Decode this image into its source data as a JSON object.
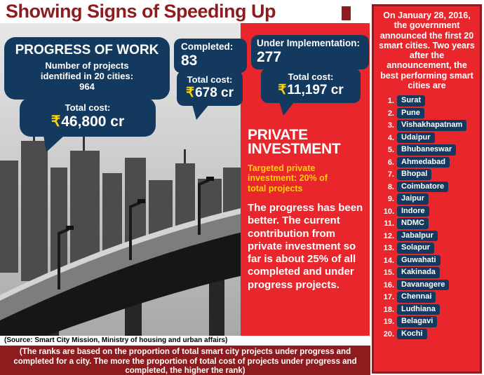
{
  "title": "Showing Signs of Speeding Up",
  "colors": {
    "maroon": "#8e1b1e",
    "red": "#e8262b",
    "navy": "#14395e",
    "yellow": "#fcd20a"
  },
  "bubbles": {
    "progress": {
      "heading": "PROGRESS OF WORK",
      "sub": "Number of projects identified in 20 cities: 964",
      "cost_label": "Total cost:",
      "rupee": "₹",
      "cost_value": "46,800 cr"
    },
    "completed": {
      "label": "Completed:",
      "value": "83",
      "cost_label": "Total cost:",
      "rupee": "₹",
      "cost_value": "678 cr"
    },
    "under_implementation": {
      "label": "Under Implementation:",
      "value": "277",
      "cost_label": "Total cost:",
      "rupee": "₹",
      "cost_value": "11,197 cr"
    }
  },
  "private_investment": {
    "heading_line1": "PRIVATE",
    "heading_line2": "INVESTMENT",
    "target": "Targeted private investment: 20% of total projects",
    "body": "The progress has been better. The current contribution from private investment so far is about 25% of all completed and under progress projects."
  },
  "source": "(Source: Smart City Mission, Ministry of housing and urban affairs)",
  "footnote": "(The ranks are based on the proportion of total smart city projects under progress and completed for a city. The more the proportion of total cost of projects under progress and completed, the higher the rank)",
  "sidebar": {
    "intro": "On January 28, 2016, the government announced the first 20 smart cities. Two years after the announcement, the best performing smart cities are",
    "cities": [
      {
        "rank": "1.",
        "name": "Surat"
      },
      {
        "rank": "2.",
        "name": "Pune"
      },
      {
        "rank": "3.",
        "name": "Vishakhapatnam"
      },
      {
        "rank": "4.",
        "name": "Udaipur"
      },
      {
        "rank": "5.",
        "name": "Bhubaneswar"
      },
      {
        "rank": "6.",
        "name": "Ahmedabad"
      },
      {
        "rank": "7.",
        "name": "Bhopal"
      },
      {
        "rank": "8.",
        "name": "Coimbatore"
      },
      {
        "rank": "9.",
        "name": "Jaipur"
      },
      {
        "rank": "10.",
        "name": "Indore"
      },
      {
        "rank": "11.",
        "name": "NDMC"
      },
      {
        "rank": "12.",
        "name": "Jabalpur"
      },
      {
        "rank": "13.",
        "name": "Solapur"
      },
      {
        "rank": "14.",
        "name": "Guwahati"
      },
      {
        "rank": "15.",
        "name": "Kakinada"
      },
      {
        "rank": "16.",
        "name": "Davanagere"
      },
      {
        "rank": "17.",
        "name": "Chennai"
      },
      {
        "rank": "18.",
        "name": "Ludhiana"
      },
      {
        "rank": "19.",
        "name": "Belagavi"
      },
      {
        "rank": "20.",
        "name": "Kochi"
      }
    ]
  }
}
